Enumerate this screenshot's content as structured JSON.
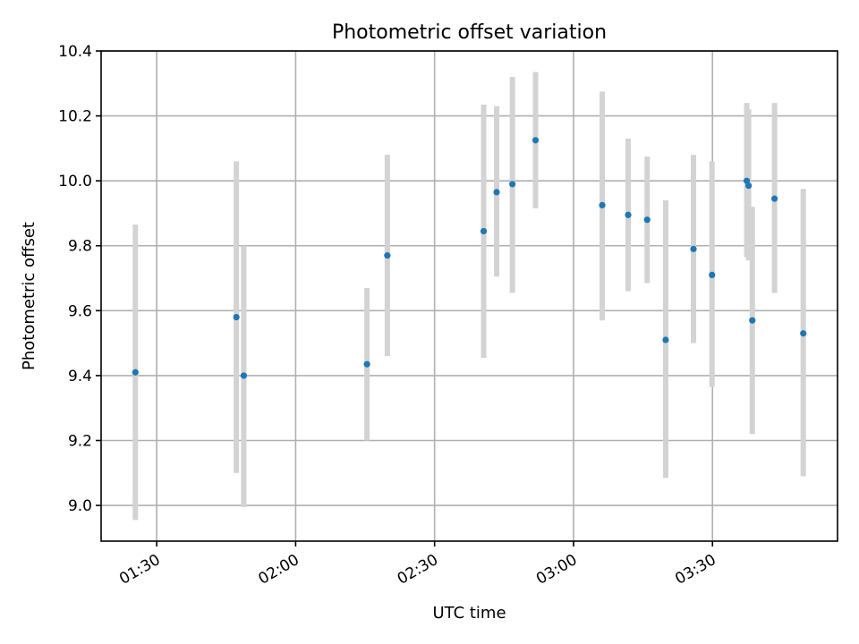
{
  "chart_data": {
    "type": "scatter",
    "title": "Photometric offset variation",
    "xlabel": "UTC time",
    "ylabel": "Photometric offset",
    "xlim": [
      "01:18",
      "03:57"
    ],
    "ylim": [
      8.89,
      10.4
    ],
    "grid": true,
    "x_ticks": [
      "01:30",
      "02:00",
      "02:30",
      "03:00",
      "03:30"
    ],
    "y_ticks": [
      "9.0",
      "9.2",
      "9.4",
      "9.6",
      "9.8",
      "10.0",
      "10.2",
      "10.4"
    ],
    "point_color": "#1f77b4",
    "errorbar_color": "#d3d3d3",
    "series": [
      {
        "x": [
          "01:25:24",
          "01:47:12",
          "01:48:48",
          "02:15:24",
          "02:19:48",
          "02:40:36",
          "02:43:24",
          "02:46:48",
          "02:51:48",
          "03:06:12",
          "03:11:48",
          "03:15:54",
          "03:19:54",
          "03:25:54",
          "03:29:54",
          "03:37:24",
          "03:37:48",
          "03:38:36",
          "03:43:24",
          "03:49:36"
        ],
        "y": [
          9.41,
          9.58,
          9.4,
          9.435,
          9.77,
          9.845,
          9.965,
          9.99,
          10.125,
          9.925,
          9.895,
          9.88,
          9.51,
          9.79,
          9.71,
          10.0,
          9.985,
          9.57,
          9.945,
          9.53
        ],
        "yerr_low": [
          8.955,
          9.1,
          8.995,
          9.2,
          9.46,
          9.455,
          9.705,
          9.655,
          9.915,
          9.57,
          9.66,
          9.685,
          9.085,
          9.5,
          9.365,
          9.765,
          9.755,
          9.22,
          9.655,
          9.09
        ],
        "yerr_high": [
          9.865,
          10.06,
          9.8,
          9.67,
          10.08,
          10.235,
          10.23,
          10.32,
          10.335,
          10.275,
          10.13,
          10.075,
          9.94,
          10.08,
          10.06,
          10.24,
          10.22,
          9.92,
          10.24,
          9.975
        ]
      }
    ]
  }
}
